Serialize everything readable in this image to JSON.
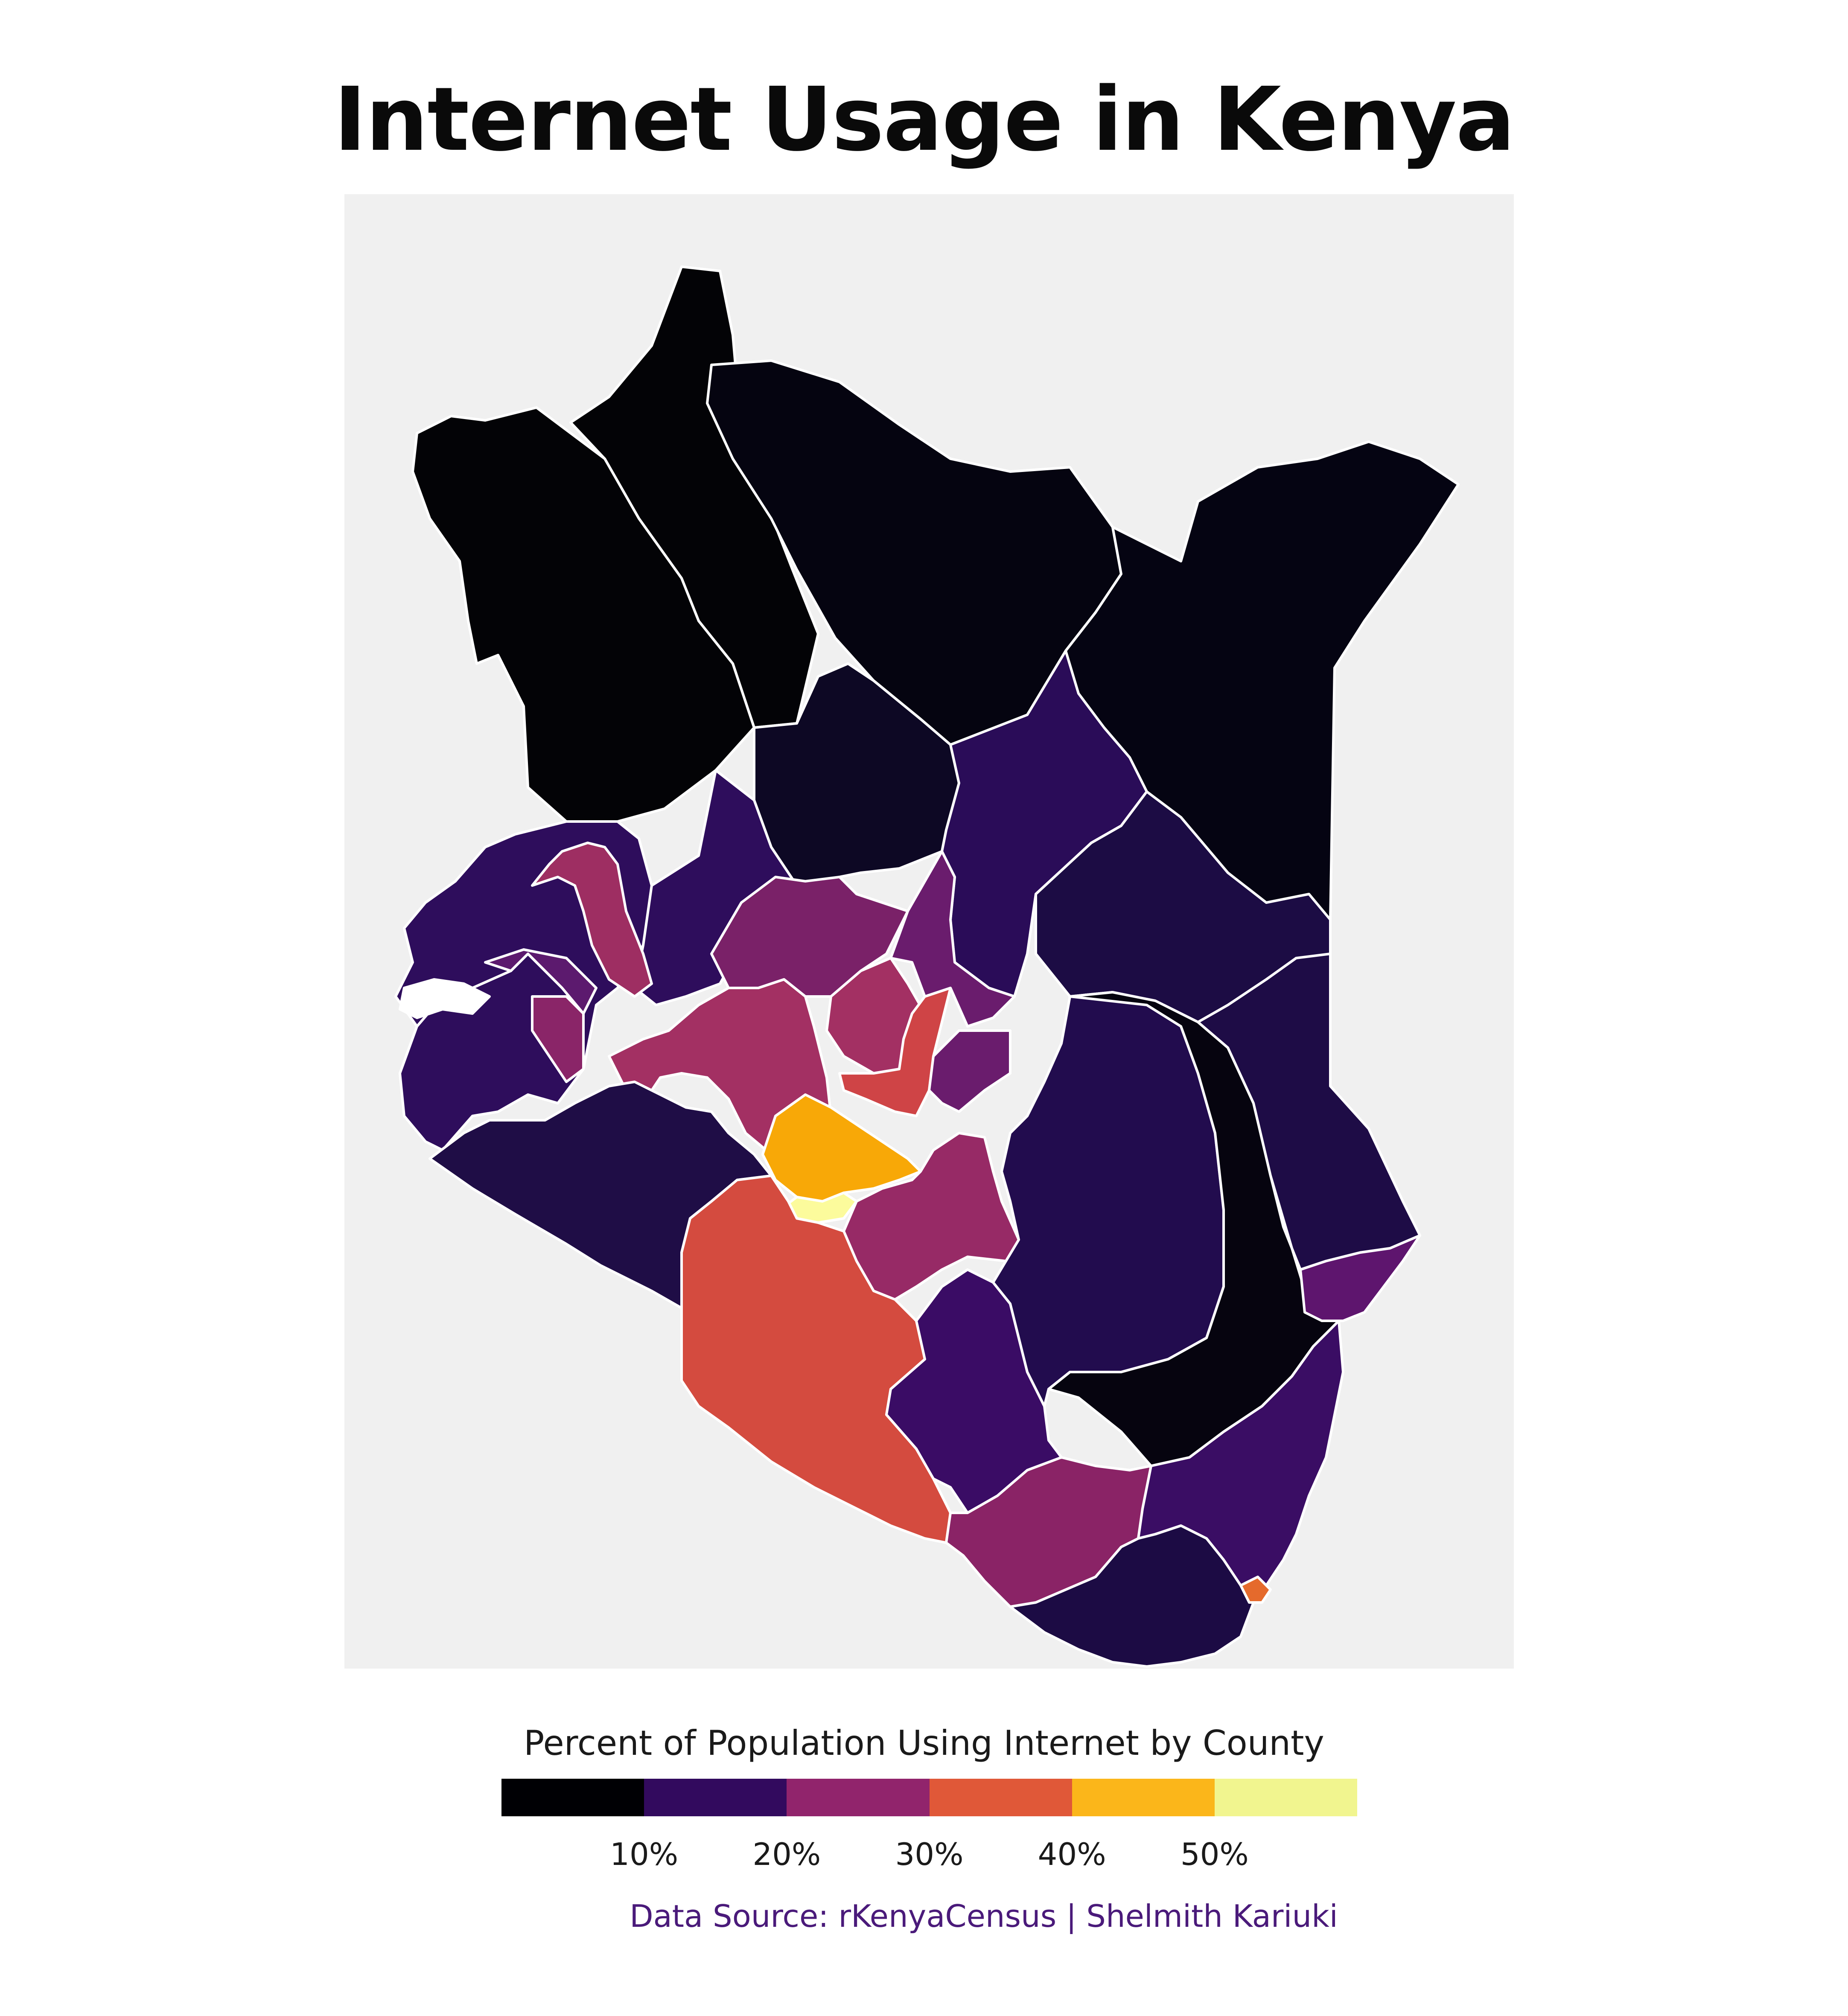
{
  "title": "Internet Usage in Kenya",
  "legend": {
    "title": "Percent of Population Using Internet by County",
    "bins": [
      {
        "color": "#000004"
      },
      {
        "color": "#320a5e"
      },
      {
        "color": "#91246c"
      },
      {
        "color": "#e05838"
      },
      {
        "color": "#fbb61a"
      },
      {
        "color": "#f1f58f"
      }
    ],
    "ticks": [
      {
        "label": "10%",
        "value": 10
      },
      {
        "label": "20%",
        "value": 20
      },
      {
        "label": "30%",
        "value": 30
      },
      {
        "label": "40%",
        "value": 40
      },
      {
        "label": "50%",
        "value": 50
      }
    ],
    "domain": [
      0,
      60
    ]
  },
  "caption": "Data Source: rKenyaCensus | Shelmith Kariuki",
  "map": {
    "background": "#f0f0f0",
    "border_color": "#ffffff",
    "regions": [
      {
        "id": "north-west",
        "fill": "#030306"
      },
      {
        "id": "north-central",
        "fill": "#050410"
      },
      {
        "id": "north-east",
        "fill": "#050412"
      },
      {
        "id": "central-north",
        "fill": "#0d0824"
      },
      {
        "id": "east-central",
        "fill": "#2a0c58"
      },
      {
        "id": "east",
        "fill": "#1c0c44"
      },
      {
        "id": "west-cluster",
        "fill": "#2e0d5c"
      },
      {
        "id": "west-highlight",
        "fill": "#9e2e62"
      },
      {
        "id": "west-mid-a",
        "fill": "#5c1a6e"
      },
      {
        "id": "west-mid-b",
        "fill": "#8a2568"
      },
      {
        "id": "rift-central",
        "fill": "#7a2168"
      },
      {
        "id": "rift-red",
        "fill": "#a33063"
      },
      {
        "id": "central-orange",
        "fill": "#cf4446"
      },
      {
        "id": "central-mid",
        "fill": "#6a1c6d"
      },
      {
        "id": "kiambu",
        "fill": "#f8a807"
      },
      {
        "id": "nairobi",
        "fill": "#fcfb9c"
      },
      {
        "id": "machakos",
        "fill": "#972a66"
      },
      {
        "id": "south-west",
        "fill": "#1f0d46"
      },
      {
        "id": "kajiado",
        "fill": "#d44b3f"
      },
      {
        "id": "makueni",
        "fill": "#3a0c65"
      },
      {
        "id": "kitui",
        "fill": "#220c4e"
      },
      {
        "id": "tana-river",
        "fill": "#06040f"
      },
      {
        "id": "garissa",
        "fill": "#1e0c46"
      },
      {
        "id": "lamu",
        "fill": "#5e156e"
      },
      {
        "id": "kilifi",
        "fill": "#3a0d64"
      },
      {
        "id": "taita-taveta",
        "fill": "#8a2366"
      },
      {
        "id": "kwale",
        "fill": "#1c0b44"
      },
      {
        "id": "mombasa",
        "fill": "#e56a2c"
      }
    ]
  }
}
